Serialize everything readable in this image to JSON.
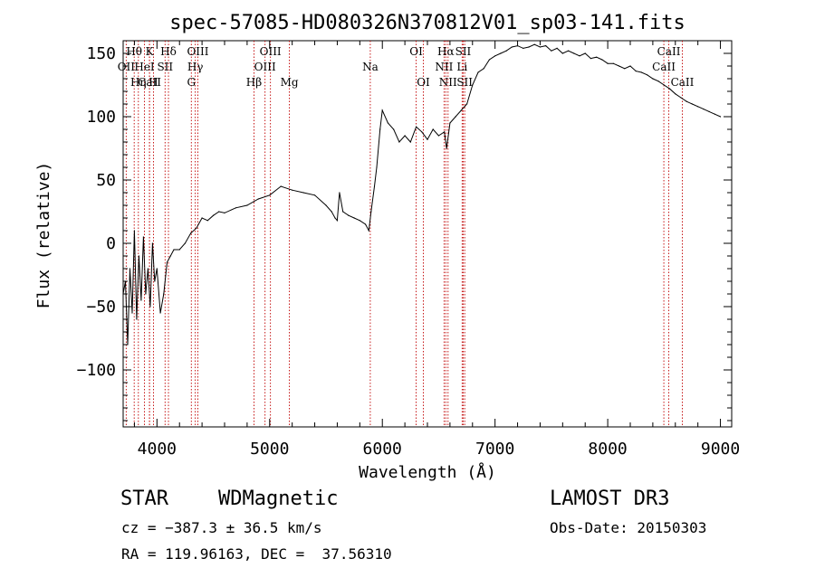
{
  "chart_data": {
    "type": "line",
    "title": "spec-57085-HD080326N370812V01_sp03-141.fits",
    "xlabel": "Wavelength (Å)",
    "ylabel": "Flux (relative)",
    "xlim": [
      3700,
      9100
    ],
    "ylim": [
      -145,
      160
    ],
    "xticks": [
      4000,
      5000,
      6000,
      7000,
      8000,
      9000
    ],
    "yticks": [
      -100,
      -50,
      0,
      50,
      100,
      150
    ],
    "xtick_labels": [
      "4000",
      "5000",
      "6000",
      "7000",
      "8000",
      "9000"
    ],
    "ytick_labels": [
      "−100",
      "−50",
      "0",
      "50",
      "100",
      "150"
    ],
    "series": [
      {
        "name": "flux",
        "x": [
          3700,
          3720,
          3740,
          3760,
          3780,
          3800,
          3820,
          3840,
          3860,
          3880,
          3900,
          3920,
          3940,
          3960,
          3980,
          4000,
          4030,
          4060,
          4090,
          4120,
          4150,
          4200,
          4250,
          4300,
          4350,
          4400,
          4450,
          4500,
          4550,
          4600,
          4700,
          4800,
          4900,
          5000,
          5100,
          5200,
          5300,
          5400,
          5500,
          5550,
          5580,
          5600,
          5620,
          5650,
          5700,
          5750,
          5800,
          5850,
          5880,
          5900,
          5930,
          5950,
          5980,
          6000,
          6050,
          6100,
          6150,
          6200,
          6250,
          6300,
          6350,
          6400,
          6450,
          6500,
          6550,
          6570,
          6600,
          6650,
          6700,
          6750,
          6800,
          6850,
          6900,
          6950,
          7000,
          7050,
          7100,
          7150,
          7200,
          7250,
          7300,
          7350,
          7400,
          7450,
          7500,
          7550,
          7600,
          7650,
          7700,
          7750,
          7800,
          7850,
          7900,
          7950,
          8000,
          8050,
          8100,
          8150,
          8200,
          8250,
          8300,
          8350,
          8400,
          8450,
          8500,
          8550,
          8600,
          8650,
          8700,
          8750,
          8800,
          8850,
          8900,
          8950,
          9000
        ],
        "y": [
          -40,
          -30,
          -80,
          -20,
          -55,
          10,
          -60,
          -10,
          -45,
          5,
          -40,
          -20,
          -50,
          0,
          -30,
          -20,
          -55,
          -40,
          -15,
          -10,
          -5,
          -5,
          0,
          8,
          12,
          20,
          18,
          22,
          25,
          24,
          28,
          30,
          35,
          38,
          45,
          42,
          40,
          38,
          30,
          25,
          20,
          18,
          40,
          25,
          22,
          20,
          18,
          15,
          10,
          25,
          45,
          60,
          90,
          105,
          95,
          90,
          80,
          85,
          80,
          92,
          88,
          82,
          90,
          85,
          88,
          75,
          95,
          100,
          105,
          110,
          125,
          135,
          138,
          145,
          148,
          150,
          152,
          155,
          156,
          154,
          155,
          157,
          155,
          156,
          152,
          154,
          150,
          152,
          150,
          148,
          150,
          146,
          147,
          145,
          142,
          142,
          140,
          138,
          140,
          136,
          135,
          133,
          130,
          128,
          125,
          122,
          118,
          115,
          112,
          110,
          108,
          106,
          104,
          102,
          100
        ]
      }
    ],
    "spectral_lines": [
      {
        "label": "Hθ",
        "x": 3798,
        "row": 1
      },
      {
        "label": "OII",
        "x": 3727,
        "row": 2
      },
      {
        "label": "CaII",
        "x": 3934,
        "row": 3
      },
      {
        "label": "Hη",
        "x": 3835,
        "row": 3
      },
      {
        "label": "K",
        "x": 3934,
        "row": 1
      },
      {
        "label": "HeI",
        "x": 3889,
        "row": 2
      },
      {
        "label": "H",
        "x": 3969,
        "row": 3
      },
      {
        "label": "Hδ",
        "x": 4102,
        "row": 1
      },
      {
        "label": "SII",
        "x": 4072,
        "row": 2
      },
      {
        "label": "OIII",
        "x": 4363,
        "row": 1
      },
      {
        "label": "Hγ",
        "x": 4340,
        "row": 2
      },
      {
        "label": "G",
        "x": 4305,
        "row": 3
      },
      {
        "label": "Hβ",
        "x": 4861,
        "row": 3
      },
      {
        "label": "OIII",
        "x": 5007,
        "row": 1
      },
      {
        "label": "OIII",
        "x": 4959,
        "row": 2
      },
      {
        "label": "Mg",
        "x": 5175,
        "row": 3
      },
      {
        "label": "Na",
        "x": 5893,
        "row": 2
      },
      {
        "label": "OI",
        "x": 6300,
        "row": 1
      },
      {
        "label": "OI",
        "x": 6364,
        "row": 3
      },
      {
        "label": "Hα",
        "x": 6563,
        "row": 1
      },
      {
        "label": "NII",
        "x": 6548,
        "row": 2
      },
      {
        "label": "NII",
        "x": 6583,
        "row": 3
      },
      {
        "label": "SII",
        "x": 6717,
        "row": 1
      },
      {
        "label": "Li",
        "x": 6708,
        "row": 2
      },
      {
        "label": "SII",
        "x": 6731,
        "row": 3
      },
      {
        "label": "CaII",
        "x": 8542,
        "row": 1
      },
      {
        "label": "CaII",
        "x": 8498,
        "row": 2
      },
      {
        "label": "CaII",
        "x": 8662,
        "row": 3
      }
    ]
  },
  "info": {
    "object_class": "STAR",
    "subclass": "WDMagnetic",
    "survey": "LAMOST DR3",
    "cz": "cz = −387.3 ± 36.5 km/s",
    "obs_date": "Obs-Date: 20150303",
    "coords": "RA = 119.96163, DEC =  37.56310"
  }
}
